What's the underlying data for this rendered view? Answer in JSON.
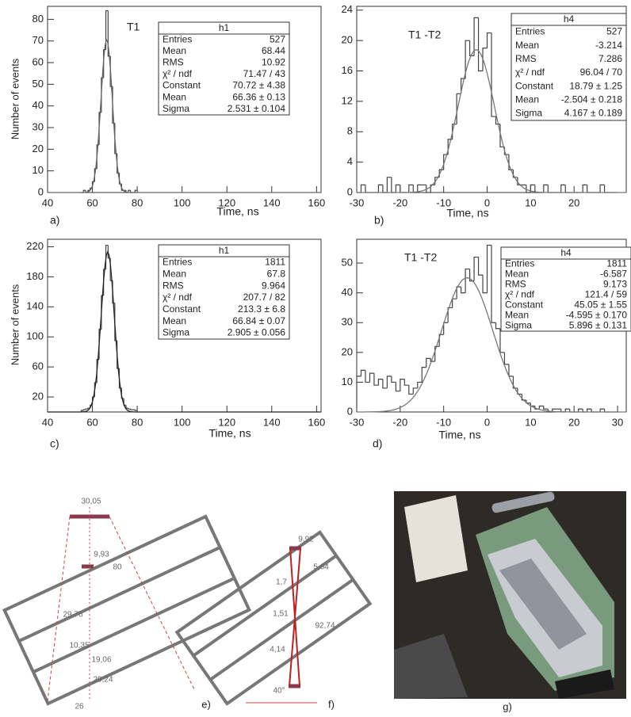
{
  "chart_data": [
    {
      "type": "histogram",
      "panel": "a)",
      "annotation": "T1",
      "xlabel": "Time, ns",
      "ylabel": "Number of events",
      "color": "#444444",
      "fit_color": "#666666",
      "bins": [
        55,
        56,
        57,
        58,
        59,
        60,
        61,
        62,
        63,
        64,
        65,
        66,
        67,
        68,
        69,
        70,
        71,
        72,
        73,
        74,
        75,
        76,
        77,
        78,
        79,
        80
      ],
      "values": [
        0,
        1,
        0,
        1,
        2,
        5,
        11,
        22,
        37,
        53,
        66,
        84,
        63,
        49,
        32,
        18,
        9,
        4,
        1,
        1,
        0,
        1,
        0,
        0,
        1
      ],
      "fit": {
        "constant": 70.72,
        "mean": 66.36,
        "sigma": 2.531
      },
      "xlim": [
        40,
        162
      ],
      "xticks": [
        40,
        60,
        80,
        100,
        120,
        140,
        160
      ],
      "ylim": [
        0,
        86
      ],
      "yticks": [
        0,
        10,
        20,
        30,
        40,
        50,
        60,
        70,
        80
      ],
      "stats": {
        "title": "h1",
        "rows": [
          [
            "Entries",
            "527"
          ],
          [
            "Mean",
            "68.44"
          ],
          [
            "RMS",
            "10.92"
          ],
          [
            "χ² / ndf",
            "71.47 / 43"
          ],
          [
            "Constant",
            "70.72 ± 4.38"
          ],
          [
            "Mean",
            "66.36 ± 0.13"
          ],
          [
            "Sigma",
            "2.531 ± 0.104"
          ]
        ]
      }
    },
    {
      "type": "histogram",
      "panel": "b)",
      "annotation": "T1 -T2",
      "xlabel": "Time, ns",
      "color": "#444444",
      "fit_color": "#777777",
      "bins": [
        -30,
        -29,
        -28,
        -27,
        -26,
        -25,
        -24,
        -23,
        -22,
        -21,
        -20,
        -19,
        -18,
        -17,
        -16,
        -15,
        -14,
        -13,
        -12,
        -11,
        -10,
        -9,
        -8,
        -7,
        -6,
        -5,
        -4,
        -3,
        -2,
        -1,
        0,
        1,
        2,
        3,
        4,
        5,
        6,
        7,
        8,
        9,
        10,
        11,
        12,
        13,
        14,
        15,
        16,
        17,
        18,
        19,
        20,
        21,
        22,
        23,
        24,
        25,
        26,
        27,
        28,
        29,
        30
      ],
      "values": [
        0,
        1,
        0,
        0,
        0,
        1,
        0,
        2,
        0,
        1,
        0,
        0,
        1,
        0,
        1,
        1,
        0,
        1,
        2,
        3,
        5,
        7,
        9,
        13,
        15,
        20,
        18,
        23,
        16,
        19,
        21,
        10,
        9,
        6,
        5,
        3,
        2,
        1,
        1,
        0,
        1,
        0,
        0,
        1,
        0,
        0,
        0,
        1,
        0,
        0,
        0,
        0,
        1,
        0,
        0,
        0,
        1,
        0,
        0,
        0
      ],
      "fit": {
        "constant": 18.79,
        "mean": -2.504,
        "sigma": 4.167
      },
      "xlim": [
        -30,
        32
      ],
      "xticks": [
        -30,
        -20,
        -10,
        0,
        10,
        20
      ],
      "ylim": [
        0,
        24.5
      ],
      "yticks": [
        0,
        4,
        8,
        12,
        16,
        20,
        24
      ],
      "stats": {
        "title": "h4",
        "rows": [
          [
            "Entries",
            "527"
          ],
          [
            "Mean",
            "-3.214"
          ],
          [
            "RMS",
            "7.286"
          ],
          [
            "χ² / ndf",
            "96.04 / 70"
          ],
          [
            "Constant",
            "18.79 ± 1.25"
          ],
          [
            "Mean",
            "-2.504 ± 0.218"
          ],
          [
            "Sigma",
            "4.167 ± 0.189"
          ]
        ]
      }
    },
    {
      "type": "histogram",
      "panel": "c)",
      "annotation": "T1",
      "xlabel": "Time, ns",
      "ylabel": "Number of events",
      "color": "#444444",
      "fit_color": "#222222",
      "bins": [
        55,
        56,
        57,
        58,
        59,
        60,
        61,
        62,
        63,
        64,
        65,
        66,
        67,
        68,
        69,
        70,
        71,
        72,
        73,
        74,
        75,
        76,
        77,
        78,
        79,
        80
      ],
      "values": [
        2,
        3,
        4,
        5,
        9,
        20,
        39,
        70,
        110,
        155,
        190,
        222,
        205,
        175,
        145,
        95,
        58,
        32,
        18,
        9,
        5,
        4,
        3,
        3,
        2
      ],
      "fit": {
        "constant": 213.3,
        "mean": 66.84,
        "sigma": 2.905
      },
      "xlim": [
        40,
        162
      ],
      "xticks": [
        40,
        60,
        80,
        100,
        120,
        140,
        160
      ],
      "ylim": [
        0,
        230
      ],
      "yticks": [
        20,
        60,
        100,
        140,
        180,
        220
      ],
      "stats": {
        "title": "h1",
        "rows": [
          [
            "Entries",
            "1811"
          ],
          [
            "Mean",
            "67.8"
          ],
          [
            "RMS",
            "9.964"
          ],
          [
            "χ² / ndf",
            "207.7 / 82"
          ],
          [
            "Constant",
            "213.3 ± 6.8"
          ],
          [
            "Mean",
            "66.84 ± 0.07"
          ],
          [
            "Sigma",
            "2.905 ± 0.056"
          ]
        ]
      }
    },
    {
      "type": "histogram",
      "panel": "d)",
      "annotation": "T1 -T2",
      "xlabel": "Time, ns",
      "color": "#444444",
      "fit_color": "#777777",
      "bins": [
        -30,
        -29,
        -28,
        -27,
        -26,
        -25,
        -24,
        -23,
        -22,
        -21,
        -20,
        -19,
        -18,
        -17,
        -16,
        -15,
        -14,
        -13,
        -12,
        -11,
        -10,
        -9,
        -8,
        -7,
        -6,
        -5,
        -4,
        -3,
        -2,
        -1,
        0,
        1,
        2,
        3,
        4,
        5,
        6,
        7,
        8,
        9,
        10,
        11,
        12,
        13,
        14,
        15,
        16,
        17,
        18,
        19,
        20,
        21,
        22,
        23,
        24,
        25,
        26,
        27,
        28,
        29,
        30
      ],
      "values": [
        12,
        14,
        10,
        13,
        9,
        11,
        8,
        12,
        10,
        7,
        11,
        9,
        6,
        8,
        10,
        15,
        18,
        17,
        22,
        26,
        30,
        35,
        38,
        42,
        40,
        48,
        44,
        52,
        46,
        40,
        56,
        30,
        28,
        20,
        16,
        12,
        8,
        6,
        4,
        3,
        2,
        1,
        2,
        1,
        0,
        1,
        1,
        0,
        1,
        0,
        0,
        1,
        0,
        1,
        0,
        0,
        1,
        0,
        0,
        0
      ],
      "fit": {
        "constant": 45.05,
        "mean": -4.595,
        "sigma": 5.896
      },
      "xlim": [
        -30,
        32
      ],
      "xticks": [
        -30,
        -20,
        -10,
        0,
        10,
        20,
        30
      ],
      "ylim": [
        0,
        58
      ],
      "yticks": [
        0,
        10,
        20,
        30,
        40,
        50
      ],
      "stats": {
        "title": "h4",
        "rows": [
          [
            "Entries",
            "1811"
          ],
          [
            "Mean",
            "-6.587"
          ],
          [
            "RMS",
            "9.173"
          ],
          [
            "χ² / ndf",
            "121.4 / 59"
          ],
          [
            "Constant",
            "45.05 ± 1.55"
          ],
          [
            "Mean",
            "-4.595 ± 0.170"
          ],
          [
            "Sigma",
            "5.896 ± 0.131"
          ]
        ]
      }
    }
  ],
  "diagram_e": {
    "panel": "e)",
    "labels": [
      "30,05",
      "9,93",
      "80",
      "29,76",
      "10,35",
      "19,06",
      "29,24",
      "26"
    ]
  },
  "diagram_f": {
    "panel": "f)",
    "labels": [
      "9,92",
      "5,64",
      "1,7",
      "1,51",
      "4,14",
      "92,74",
      "40°"
    ]
  },
  "photo_g": {
    "panel": "g)"
  }
}
